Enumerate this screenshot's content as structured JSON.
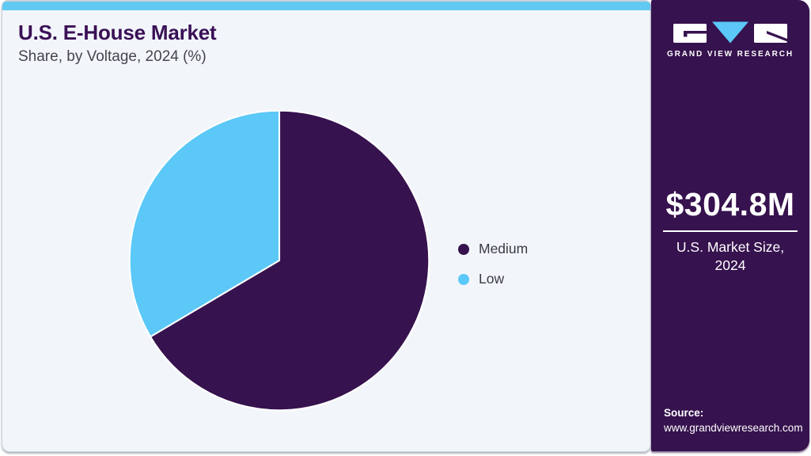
{
  "header": {
    "title": "U.S. E-House Market",
    "subtitle": "Share, by Voltage, 2024 (%)"
  },
  "chart_data": {
    "type": "pie",
    "title": "U.S. E-House Market Share, by Voltage, 2024 (%)",
    "labels": [
      "Medium",
      "Low"
    ],
    "values": [
      66.5,
      33.5
    ],
    "unit": "%",
    "colors": [
      "#36124e",
      "#5bc8f7"
    ],
    "start_angle": 0,
    "direction": "clockwise",
    "legend_position": "right",
    "slice_separator_color": "#ffffff"
  },
  "sidebar": {
    "logo_text": "GRAND VIEW RESEARCH",
    "market_size_value": "$304.8M",
    "market_size_caption": [
      "U.S. Market Size,",
      "2024"
    ],
    "source_label": "Source:",
    "source_url": "www.grandviewresearch.com"
  },
  "theme": {
    "accent_blue": "#62c9f2",
    "brand_purple": "#36124e",
    "panel_background": "#f2f6fa",
    "title_color": "#3a1056",
    "body_text_color": "#45454e"
  }
}
